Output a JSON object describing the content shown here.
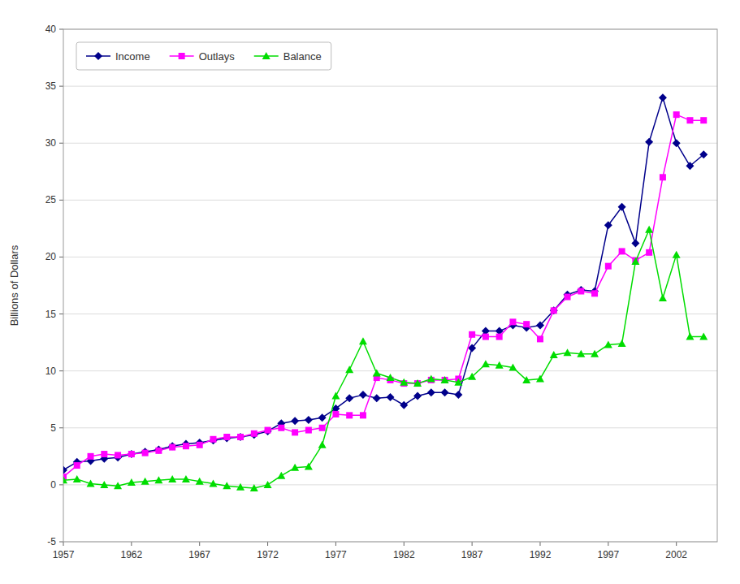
{
  "chart_data": {
    "type": "line",
    "ylabel": "Billions of Dollars",
    "x": [
      1957,
      1958,
      1959,
      1960,
      1961,
      1962,
      1963,
      1964,
      1965,
      1966,
      1967,
      1968,
      1969,
      1970,
      1971,
      1972,
      1973,
      1974,
      1975,
      1976,
      1977,
      1978,
      1979,
      1980,
      1981,
      1982,
      1983,
      1984,
      1985,
      1986,
      1987,
      1988,
      1989,
      1990,
      1991,
      1992,
      1993,
      1994,
      1995,
      1996,
      1997,
      1998,
      1999,
      2000,
      2001,
      2002,
      2003,
      2004
    ],
    "series": [
      {
        "name": "Income",
        "color": "#00008B",
        "marker": "diamond",
        "values": [
          1.3,
          2.0,
          2.1,
          2.3,
          2.4,
          2.7,
          2.9,
          3.1,
          3.4,
          3.6,
          3.7,
          3.9,
          4.1,
          4.2,
          4.4,
          4.7,
          5.4,
          5.6,
          5.7,
          5.9,
          6.7,
          7.6,
          7.9,
          7.6,
          7.7,
          7.0,
          7.8,
          8.1,
          8.1,
          7.9,
          12.0,
          13.5,
          13.5,
          14.0,
          13.8,
          14.0,
          15.3,
          16.7,
          17.1,
          17.0,
          22.8,
          24.4,
          21.2,
          30.1,
          34.0,
          30.0,
          28.0,
          29.0
        ]
      },
      {
        "name": "Outlays",
        "color": "#FF00FF",
        "marker": "square",
        "values": [
          0.7,
          1.7,
          2.5,
          2.7,
          2.6,
          2.7,
          2.8,
          3.0,
          3.3,
          3.4,
          3.5,
          4.0,
          4.2,
          4.2,
          4.5,
          4.8,
          5.0,
          4.6,
          4.8,
          5.0,
          6.2,
          6.1,
          6.1,
          9.4,
          9.2,
          8.9,
          8.9,
          9.2,
          9.2,
          9.3,
          13.2,
          13.0,
          13.0,
          14.3,
          14.1,
          12.8,
          15.3,
          16.5,
          17.0,
          16.8,
          19.2,
          20.5,
          19.7,
          20.4,
          27.0,
          32.5,
          32.0,
          32.0
        ]
      },
      {
        "name": "Balance",
        "color": "#00DD00",
        "marker": "triangle",
        "values": [
          0.4,
          0.5,
          0.1,
          0.0,
          -0.1,
          0.2,
          0.3,
          0.4,
          0.5,
          0.5,
          0.3,
          0.1,
          -0.1,
          -0.2,
          -0.3,
          0.0,
          0.8,
          1.5,
          1.6,
          3.5,
          7.8,
          10.1,
          12.6,
          9.8,
          9.4,
          9.0,
          8.9,
          9.3,
          9.2,
          9.0,
          9.5,
          10.6,
          10.5,
          10.3,
          9.2,
          9.3,
          11.4,
          11.6,
          11.5,
          11.5,
          12.3,
          12.4,
          19.6,
          22.4,
          16.4,
          20.2,
          13.0,
          13.0
        ]
      }
    ],
    "xlim": [
      1957,
      2005
    ],
    "xticks": [
      1957,
      1962,
      1967,
      1972,
      1977,
      1982,
      1987,
      1992,
      1997,
      2002
    ],
    "ylim": [
      -5,
      40
    ],
    "yticks": [
      -5,
      0,
      5,
      10,
      15,
      20,
      25,
      30,
      35,
      40
    ],
    "grid": true,
    "legend": "upper left"
  }
}
